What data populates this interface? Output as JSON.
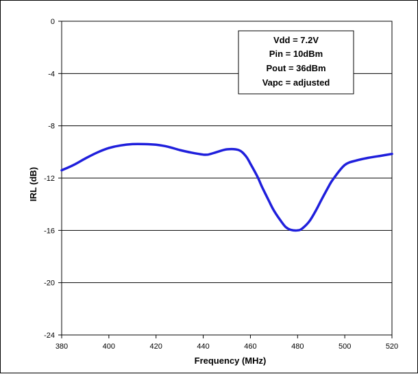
{
  "chart_data": {
    "type": "line",
    "title": "",
    "xlabel": "Frequency (MHz)",
    "ylabel": "IRL (dB)",
    "xlim": [
      380,
      520
    ],
    "ylim": [
      -24,
      0
    ],
    "xticks": [
      "380",
      "400",
      "420",
      "440",
      "460",
      "480",
      "500",
      "520"
    ],
    "yticks": [
      "0",
      "-4",
      "-8",
      "-12",
      "-16",
      "-20",
      "-24"
    ],
    "grid": "horizontal",
    "legend": "none",
    "line_color": "#1f1fdc",
    "annotation": [
      "Vdd = 7.2V",
      "Pin = 10dBm",
      "Pout = 36dBm",
      "Vapc = adjusted"
    ],
    "series": [
      {
        "x": [
          380,
          385,
          390,
          395,
          400,
          405,
          410,
          415,
          420,
          425,
          430,
          435,
          440,
          442,
          445,
          450,
          455,
          458,
          460,
          463,
          465,
          468,
          470,
          473,
          475,
          477,
          480,
          482,
          485,
          488,
          490,
          493,
          495,
          500,
          505,
          510,
          515,
          520
        ],
        "y": [
          -11.4,
          -11.0,
          -10.5,
          -10.05,
          -9.7,
          -9.5,
          -9.4,
          -9.4,
          -9.45,
          -9.6,
          -9.85,
          -10.05,
          -10.2,
          -10.2,
          -10.05,
          -9.8,
          -9.85,
          -10.3,
          -10.9,
          -11.9,
          -12.7,
          -13.8,
          -14.5,
          -15.3,
          -15.75,
          -15.95,
          -16.0,
          -15.85,
          -15.3,
          -14.4,
          -13.7,
          -12.7,
          -12.1,
          -11.0,
          -10.65,
          -10.45,
          -10.3,
          -10.15
        ]
      }
    ]
  }
}
